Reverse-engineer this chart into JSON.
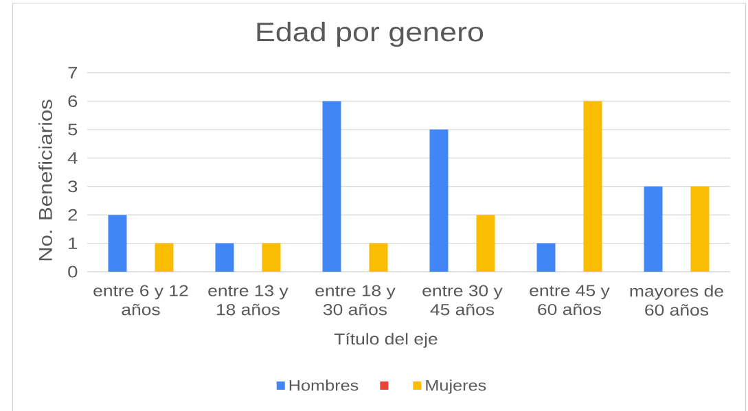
{
  "chart_data": {
    "type": "bar",
    "title": "Edad por genero",
    "xlabel": "Título del eje",
    "ylabel": "No. Beneficiarios",
    "categories": [
      "entre 6 y 12 años",
      "entre 13 y 18 años",
      "entre 18 y 30 años",
      "entre 30 y 45 años",
      "entre 45 y 60 años",
      "mayores de 60 años"
    ],
    "series": [
      {
        "name": "Hombres",
        "color": "#4285f4",
        "values": [
          2,
          1,
          6,
          5,
          1,
          3
        ]
      },
      {
        "color": "#ea4335",
        "values": [
          null,
          null,
          null,
          null,
          null,
          null
        ]
      },
      {
        "name": "Mujeres",
        "color": "#fbbc04",
        "values": [
          1,
          1,
          1,
          2,
          6,
          3
        ]
      }
    ],
    "ylim": [
      0,
      7
    ],
    "yticks": [
      0,
      1,
      2,
      3,
      4,
      5,
      6,
      7
    ],
    "grid": "y",
    "legend": "bottom"
  }
}
